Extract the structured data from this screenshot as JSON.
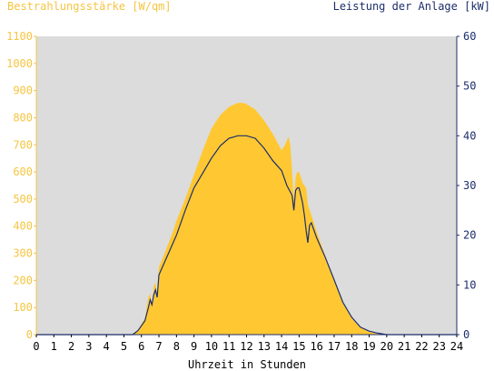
{
  "chart_data": {
    "type": "area",
    "y_left_label": "Bestrahlungsstärke [W/qm]",
    "y_right_label": "Leistung der Anlage [kW]",
    "xlabel": "Uhrzeit in Stunden",
    "xlim": [
      0,
      24
    ],
    "ylim_left": [
      0,
      1100
    ],
    "ylim_right": [
      0,
      60
    ],
    "x_ticks": [
      "0",
      "1",
      "2",
      "3",
      "4",
      "5",
      "6",
      "7",
      "8",
      "9",
      "10",
      "11",
      "12",
      "13",
      "14",
      "15",
      "16",
      "17",
      "18",
      "19",
      "20",
      "21",
      "22",
      "23",
      "24"
    ],
    "y_left_ticks": [
      0,
      100,
      200,
      300,
      400,
      500,
      600,
      700,
      800,
      900,
      1000,
      1100
    ],
    "y_right_ticks": [
      0,
      10,
      20,
      30,
      40,
      50,
      60
    ],
    "colors": {
      "irradiance": "#ffc832",
      "power": "#1d2e6b",
      "plot_bg": "#dcdcdc",
      "left_axis": "#f5c542",
      "right_axis": "#1d2e6b"
    },
    "series": [
      {
        "name": "Bestrahlungsstärke [W/qm]",
        "axis": "left",
        "x": [
          0,
          5.5,
          5.8,
          6.0,
          6.2,
          6.4,
          6.5,
          6.6,
          6.7,
          6.8,
          6.9,
          7.0,
          7.2,
          7.5,
          7.8,
          8.0,
          8.5,
          9.0,
          9.5,
          10.0,
          10.5,
          11.0,
          11.5,
          11.8,
          12.0,
          12.5,
          13.0,
          13.5,
          14.0,
          14.2,
          14.4,
          14.5,
          14.6,
          14.7,
          14.8,
          14.9,
          15.0,
          15.2,
          15.4,
          15.5,
          15.6,
          15.7,
          15.8,
          16.0,
          16.5,
          17.0,
          17.5,
          18.0,
          18.5,
          19.0,
          19.5,
          20.0,
          24
        ],
        "y": [
          0,
          0,
          15,
          40,
          60,
          140,
          150,
          100,
          180,
          190,
          150,
          250,
          280,
          330,
          380,
          420,
          500,
          590,
          680,
          760,
          810,
          840,
          855,
          855,
          850,
          830,
          790,
          740,
          680,
          700,
          730,
          700,
          600,
          500,
          580,
          600,
          600,
          560,
          540,
          480,
          460,
          440,
          420,
          380,
          290,
          200,
          120,
          60,
          25,
          10,
          2,
          0,
          0
        ]
      },
      {
        "name": "Leistung der Anlage [kW]",
        "axis": "right",
        "x": [
          0,
          5.5,
          5.8,
          6.0,
          6.2,
          6.4,
          6.5,
          6.6,
          6.7,
          6.8,
          6.9,
          7.0,
          7.5,
          8.0,
          8.5,
          9.0,
          9.5,
          10.0,
          10.5,
          11.0,
          11.5,
          12.0,
          12.5,
          13.0,
          13.5,
          14.0,
          14.3,
          14.6,
          14.7,
          14.8,
          14.9,
          15.0,
          15.1,
          15.2,
          15.3,
          15.4,
          15.5,
          15.6,
          15.7,
          15.8,
          16.0,
          16.5,
          17.0,
          17.5,
          18.0,
          18.5,
          19.0,
          19.5,
          20.0,
          24
        ],
        "y": [
          0,
          0,
          0.8,
          1.8,
          2.8,
          5.5,
          7.0,
          6.0,
          8.0,
          9.0,
          7.5,
          12.0,
          16.0,
          20.0,
          25.0,
          29.5,
          32.5,
          35.5,
          38.0,
          39.5,
          40.0,
          40.0,
          39.5,
          37.5,
          35.0,
          33.0,
          30.0,
          28.0,
          25.0,
          29.0,
          29.5,
          29.5,
          28.0,
          26.5,
          24.0,
          21.0,
          18.5,
          22.0,
          22.5,
          21.5,
          19.5,
          15.5,
          11.0,
          6.5,
          3.5,
          1.5,
          0.7,
          0.3,
          0,
          0
        ]
      }
    ]
  }
}
